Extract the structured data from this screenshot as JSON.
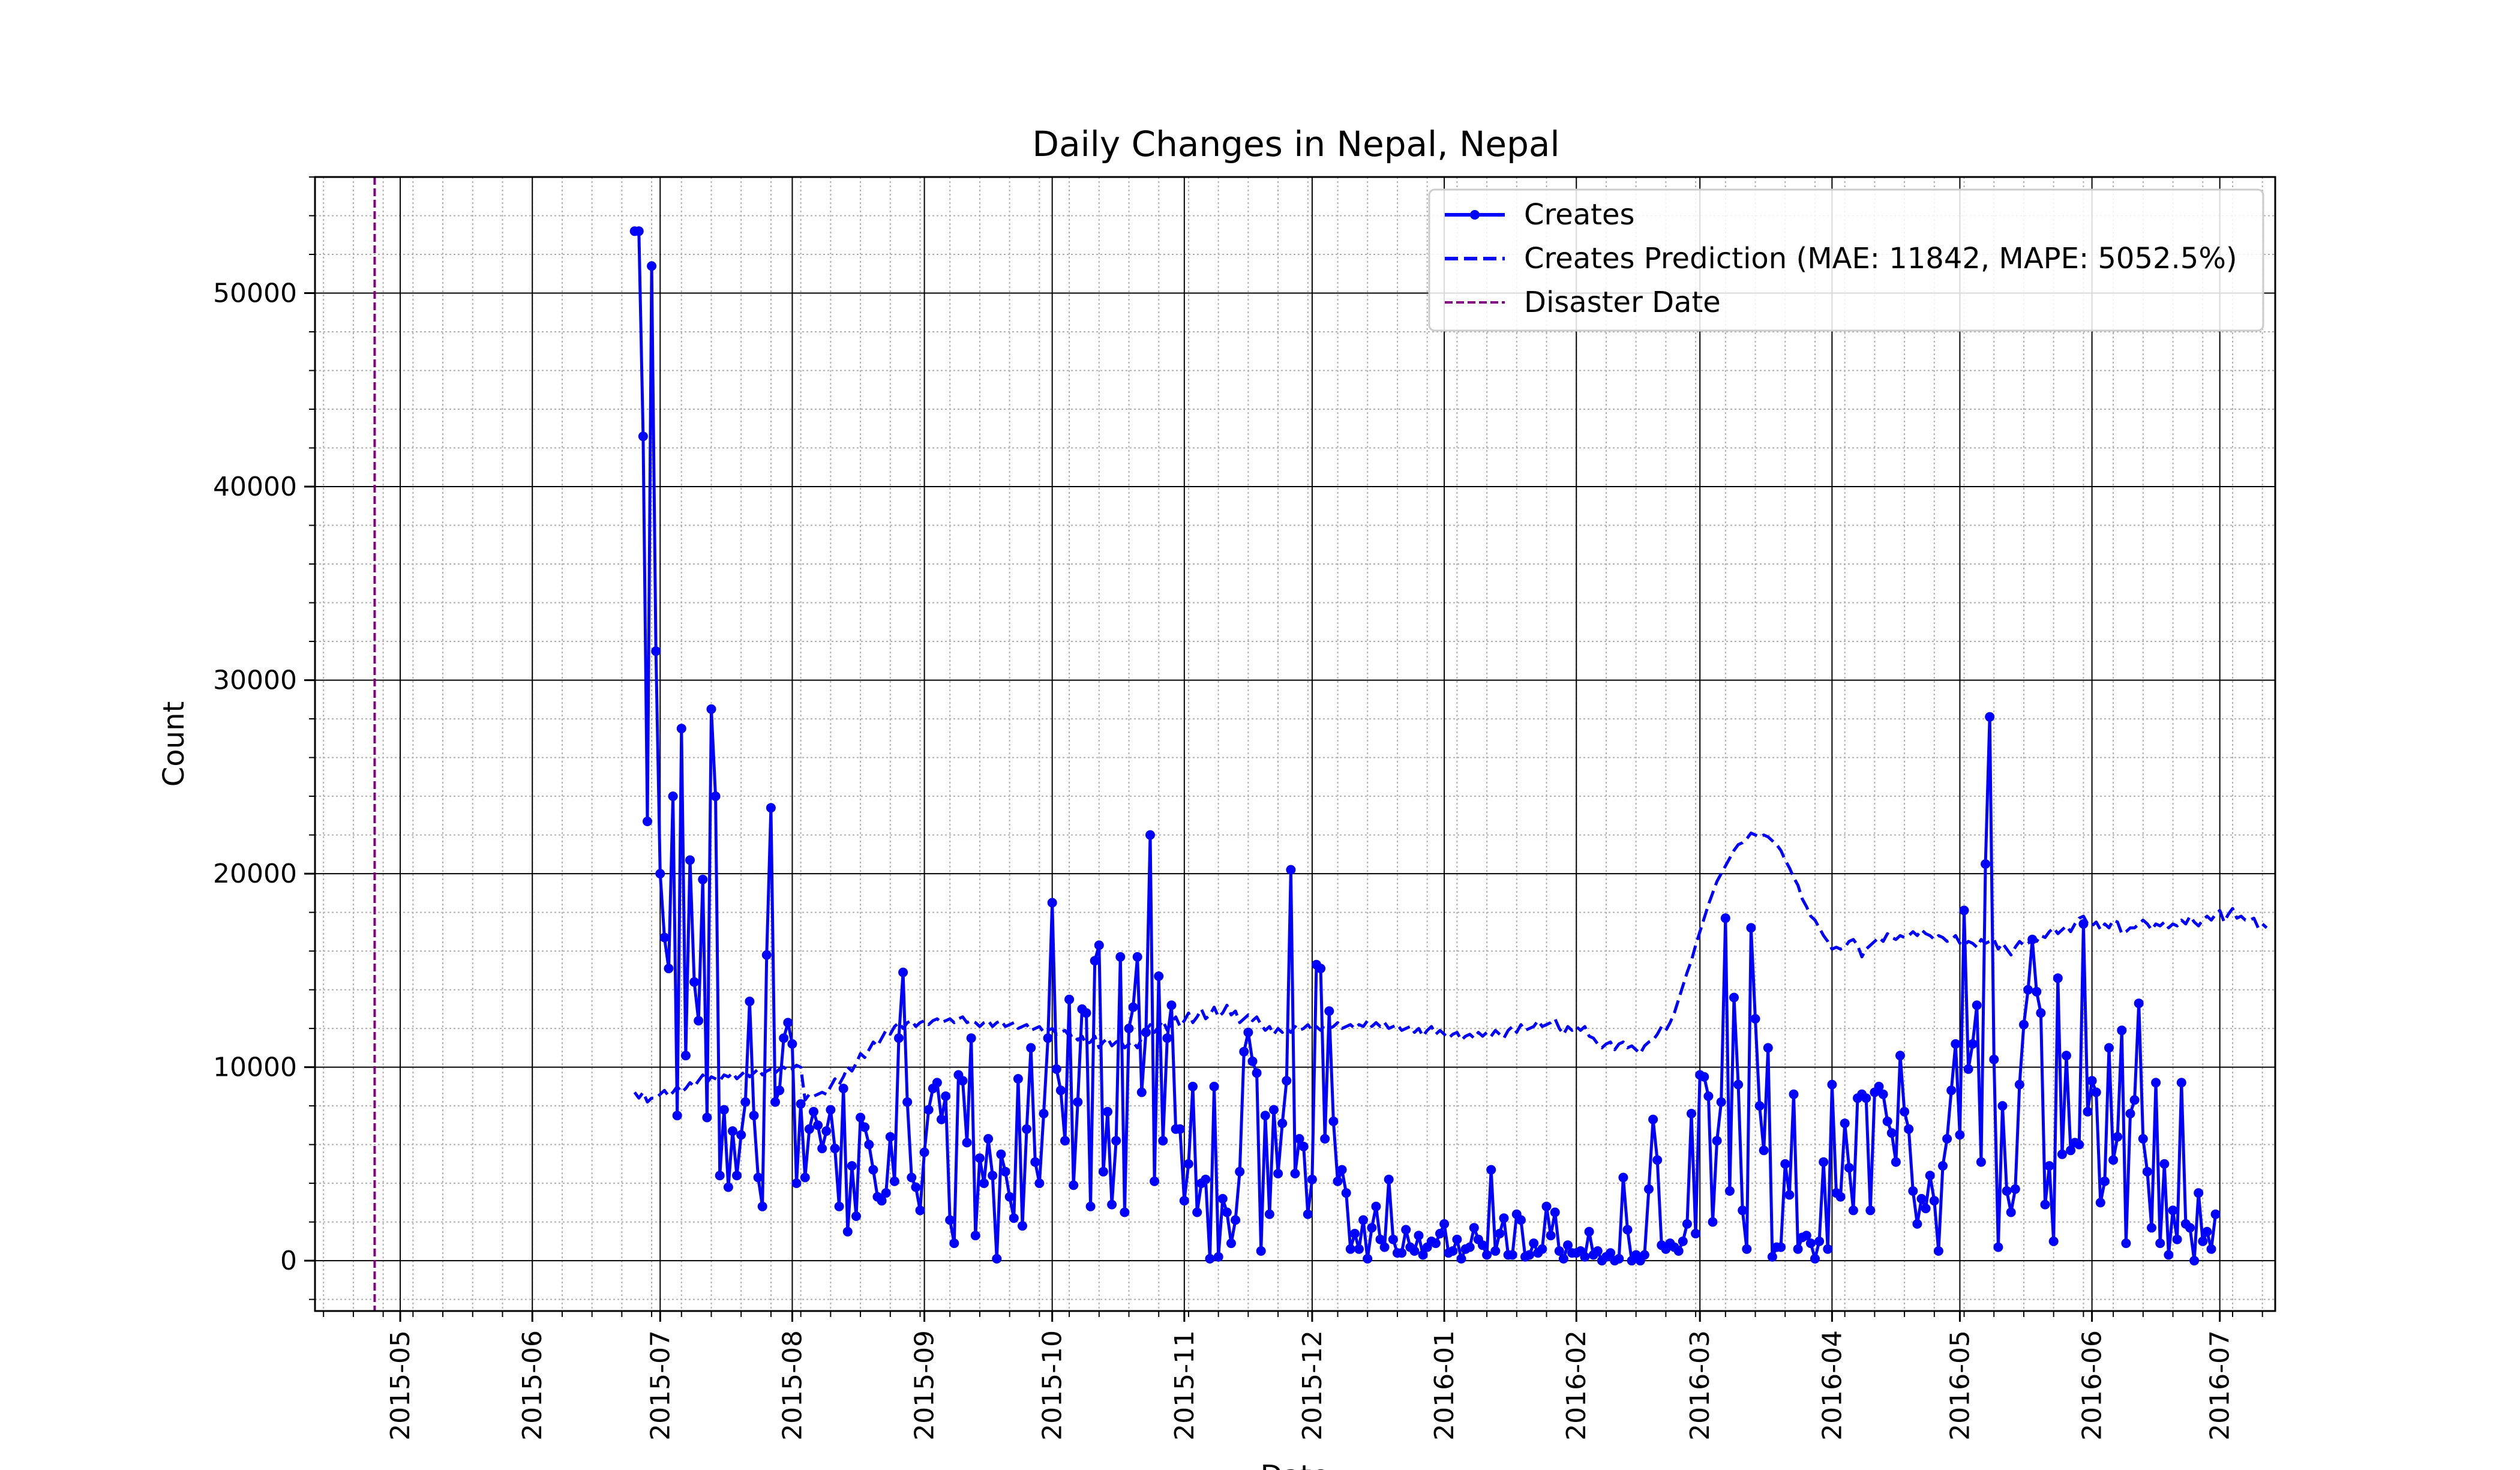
{
  "chart_data": {
    "type": "line",
    "title": "Daily Changes in Nepal, Nepal",
    "xlabel": "Date",
    "ylabel": "Count",
    "ylim": [
      -2600,
      56000
    ],
    "xlim": [
      "2015-04-11",
      "2016-07-14"
    ],
    "yticks": [
      0,
      10000,
      20000,
      30000,
      40000,
      50000
    ],
    "ytick_labels": [
      "0",
      "10000",
      "20000",
      "30000",
      "40000",
      "50000"
    ],
    "xticks": [
      "2015-05-01",
      "2015-06-01",
      "2015-07-01",
      "2015-08-01",
      "2015-09-01",
      "2015-10-01",
      "2015-11-01",
      "2015-12-01",
      "2016-01-01",
      "2016-02-01",
      "2016-03-01",
      "2016-04-01",
      "2016-05-01",
      "2016-06-01",
      "2016-07-01"
    ],
    "xtick_labels": [
      "2015-05",
      "2015-06",
      "2015-07",
      "2015-08",
      "2015-09",
      "2015-10",
      "2015-11",
      "2015-12",
      "2016-01",
      "2016-02",
      "2016-03",
      "2016-04",
      "2016-05",
      "2016-06",
      "2016-07"
    ],
    "grid": true,
    "legend_position": "top-right",
    "disaster_date": "2015-04-25",
    "series": [
      {
        "name": "Creates",
        "style": "solid-marker",
        "color": "#0000ff",
        "start_date": "2015-06-25",
        "values": [
          53200,
          53200,
          42600,
          22700,
          51400,
          31500,
          20000,
          16700,
          15100,
          24000,
          7500,
          27500,
          10600,
          20700,
          14400,
          12400,
          19700,
          7400,
          28500,
          24000,
          4400,
          7800,
          3800,
          6700,
          4400,
          6500,
          8200,
          13400,
          7500,
          4300,
          2800,
          15800,
          23400,
          8200,
          8800,
          11500,
          12300,
          11200,
          4000,
          8100,
          4300,
          6800,
          7700,
          7000,
          5800,
          6700,
          7800,
          5800,
          2800,
          8900,
          1500,
          4900,
          2300,
          7400,
          6900,
          6000,
          4700,
          3300,
          3100,
          3500,
          6400,
          4100,
          11500,
          14900,
          8200,
          4300,
          3800,
          2600,
          5600,
          7800,
          8900,
          9200,
          7300,
          8500,
          2100,
          900,
          9600,
          9300,
          6100,
          11500,
          1300,
          5300,
          4000,
          6300,
          4400,
          100,
          5500,
          4600,
          3300,
          2200,
          9400,
          1800,
          6800,
          11000,
          5100,
          4000,
          7600,
          11500,
          18500,
          9900,
          8800,
          6200,
          13500,
          3900,
          8200,
          13000,
          12800,
          2800,
          15500,
          16300,
          4600,
          7700,
          2900,
          6200,
          15700,
          2500,
          12000,
          13100,
          15700,
          8700,
          11800,
          22000,
          4100,
          14700,
          6200,
          11500,
          13200,
          6800,
          6800,
          3100,
          5000,
          9000,
          2500,
          4000,
          4200,
          100,
          9000,
          200,
          3200,
          2500,
          900,
          2100,
          4600,
          10800,
          11800,
          10300,
          9700,
          500,
          7500,
          2400,
          7800,
          4500,
          7100,
          9300,
          20200,
          4500,
          6300,
          5900,
          2400,
          4200,
          15300,
          15100,
          6300,
          12900,
          7200,
          4100,
          4700,
          3500,
          600,
          1400,
          600,
          2100,
          100,
          1700,
          2800,
          1100,
          700,
          4200,
          1100,
          400,
          400,
          1600,
          700,
          500,
          1300,
          300,
          700,
          1000,
          900,
          1400,
          1900,
          400,
          500,
          1100,
          100,
          600,
          700,
          1700,
          1100,
          800,
          300,
          4700,
          500,
          1400,
          2200,
          300,
          300,
          2400,
          2100,
          200,
          300,
          900,
          400,
          600,
          2800,
          1300,
          2500,
          500,
          100,
          800,
          400,
          400,
          500,
          200,
          1500,
          300,
          500,
          0,
          200,
          400,
          0,
          100,
          4300,
          1600,
          0,
          300,
          0,
          300,
          3700,
          7300,
          5200,
          800,
          600,
          900,
          700,
          500,
          1000,
          1900,
          7600,
          1400,
          9600,
          9500,
          8500,
          2000,
          6200,
          8200,
          17700,
          3600,
          13600,
          9100,
          2600,
          600,
          17200,
          12500,
          8000,
          5700,
          11000,
          200,
          700,
          700,
          5000,
          3400,
          8600,
          600,
          1200,
          1300,
          900,
          100,
          1000,
          5100,
          600,
          9100,
          3500,
          3300,
          7100,
          4800,
          2600,
          8400,
          8600,
          8400,
          2600,
          8700,
          9000,
          8600,
          7200,
          6600,
          5100,
          10600,
          7700,
          6800,
          3600,
          1900,
          3200,
          2700,
          4400,
          3100,
          500,
          4900,
          6300,
          8800,
          11200,
          6500,
          18100,
          9900,
          11200,
          13200,
          5100,
          20500,
          28100,
          10400,
          700,
          8000,
          3600,
          2500,
          3700,
          9100,
          12200,
          14000,
          16600,
          13900,
          12800,
          2900,
          4900,
          1000,
          14600,
          5500,
          10600,
          5700,
          6100,
          6000,
          17400,
          7700,
          9300,
          8700,
          3000,
          4100,
          11000,
          5200,
          6400,
          11900,
          900,
          7600,
          8300,
          13300,
          6300,
          4600,
          1700,
          9200,
          900,
          5000,
          300,
          2600,
          1100,
          9200,
          1900,
          1700,
          0,
          3500,
          1000,
          1500,
          600,
          2400
        ]
      },
      {
        "name": "Creates Prediction (MAE: 11842, MAPE: 5052.5%)",
        "style": "dashed",
        "color": "#0000ff",
        "start_date": "2015-06-25",
        "values": [
          8700,
          8400,
          8700,
          8200,
          8400,
          8400,
          8600,
          8800,
          8500,
          8700,
          9000,
          8700,
          8900,
          9200,
          9000,
          9300,
          9600,
          9200,
          9500,
          9400,
          9300,
          9600,
          9500,
          9700,
          9400,
          9600,
          9800,
          9500,
          9700,
          9900,
          9600,
          9800,
          9900,
          9700,
          9900,
          10000,
          9800,
          9900,
          10100,
          10000,
          8300,
          8600,
          8500,
          8600,
          8700,
          8600,
          9000,
          9400,
          9100,
          9500,
          10000,
          9800,
          10200,
          10700,
          10500,
          10900,
          11300,
          11100,
          11500,
          11900,
          11700,
          12100,
          12300,
          12000,
          12300,
          12400,
          12100,
          12300,
          12400,
          12200,
          12400,
          12500,
          12300,
          12400,
          12500,
          12300,
          12500,
          12600,
          12300,
          12400,
          12300,
          12100,
          12300,
          12400,
          12100,
          12300,
          12400,
          12100,
          12200,
          12300,
          12000,
          12100,
          12200,
          11900,
          12000,
          12100,
          11800,
          11900,
          12000,
          11700,
          11800,
          11900,
          11600,
          11700,
          11400,
          11600,
          11200,
          11300,
          11600,
          11000,
          11300,
          11500,
          11100,
          11300,
          11400,
          11000,
          11200,
          11300,
          11000,
          11500,
          11900,
          12200,
          11800,
          12100,
          12400,
          11900,
          12300,
          12600,
          12100,
          12400,
          12800,
          12300,
          12600,
          13000,
          12500,
          12700,
          13100,
          12600,
          12800,
          13200,
          12700,
          12900,
          12300,
          12500,
          12700,
          12400,
          12600,
          12200,
          11900,
          12100,
          11700,
          12000,
          11800,
          12000,
          11800,
          12100,
          11900,
          12000,
          12200,
          11900,
          12100,
          11900,
          12200,
          12000,
          12100,
          12300,
          12000,
          12100,
          12200,
          12000,
          12200,
          12100,
          12400,
          12100,
          12300,
          12100,
          12300,
          12000,
          12100,
          12200,
          11900,
          12000,
          12100,
          11800,
          12000,
          11600,
          11900,
          12100,
          11700,
          11900,
          11700,
          11500,
          11700,
          11800,
          11400,
          11600,
          11700,
          11500,
          11800,
          11600,
          11800,
          11600,
          11900,
          11700,
          11500,
          11900,
          12100,
          11800,
          12200,
          11900,
          12000,
          12100,
          12400,
          12100,
          12200,
          12300,
          12500,
          12000,
          11700,
          12100,
          11900,
          12100,
          11900,
          12100,
          11600,
          11500,
          11200,
          11000,
          11200,
          11300,
          10900,
          11200,
          11300,
          11000,
          11100,
          10900,
          10700,
          11100,
          11300,
          11400,
          11700,
          12100,
          11900,
          12300,
          12800,
          13500,
          14200,
          14900,
          15500,
          16300,
          17000,
          17700,
          18400,
          19000,
          19600,
          20000,
          20400,
          20800,
          21200,
          21500,
          21600,
          21800,
          22100,
          22000,
          21900,
          22000,
          21900,
          21700,
          21500,
          21200,
          20700,
          20300,
          19800,
          19400,
          18700,
          18300,
          17800,
          17600,
          17200,
          16800,
          16500,
          16100,
          16200,
          16100,
          16200,
          16500,
          16600,
          16300,
          15700,
          16100,
          16300,
          16500,
          16700,
          16500,
          16900,
          16700,
          16600,
          16800,
          16700,
          16800,
          17000,
          16800,
          17100,
          16900,
          16800,
          16600,
          16800,
          16700,
          16500,
          16600,
          16800,
          16400,
          16300,
          16500,
          16400,
          16200,
          16600,
          16400,
          16500,
          16600,
          16100,
          16400,
          16100,
          15800,
          16200,
          16500,
          16300,
          16400,
          16600,
          16500,
          16800,
          16700,
          17000,
          17200,
          16900,
          17100,
          17300,
          17000,
          17400,
          17700,
          17800,
          17400,
          17300,
          17500,
          17100,
          17400,
          17200,
          17600,
          17500,
          16900,
          17000,
          17200,
          17200,
          17400,
          17600,
          17400,
          17100,
          17400,
          17300,
          17500,
          17200,
          17400,
          17300,
          17600,
          17400,
          17800,
          17500,
          17300,
          17600,
          17800,
          17600,
          17900,
          18100,
          17500,
          17900,
          18200,
          17700,
          17800,
          17600,
          17600,
          17700,
          17200,
          17400,
          17200
        ]
      }
    ]
  }
}
